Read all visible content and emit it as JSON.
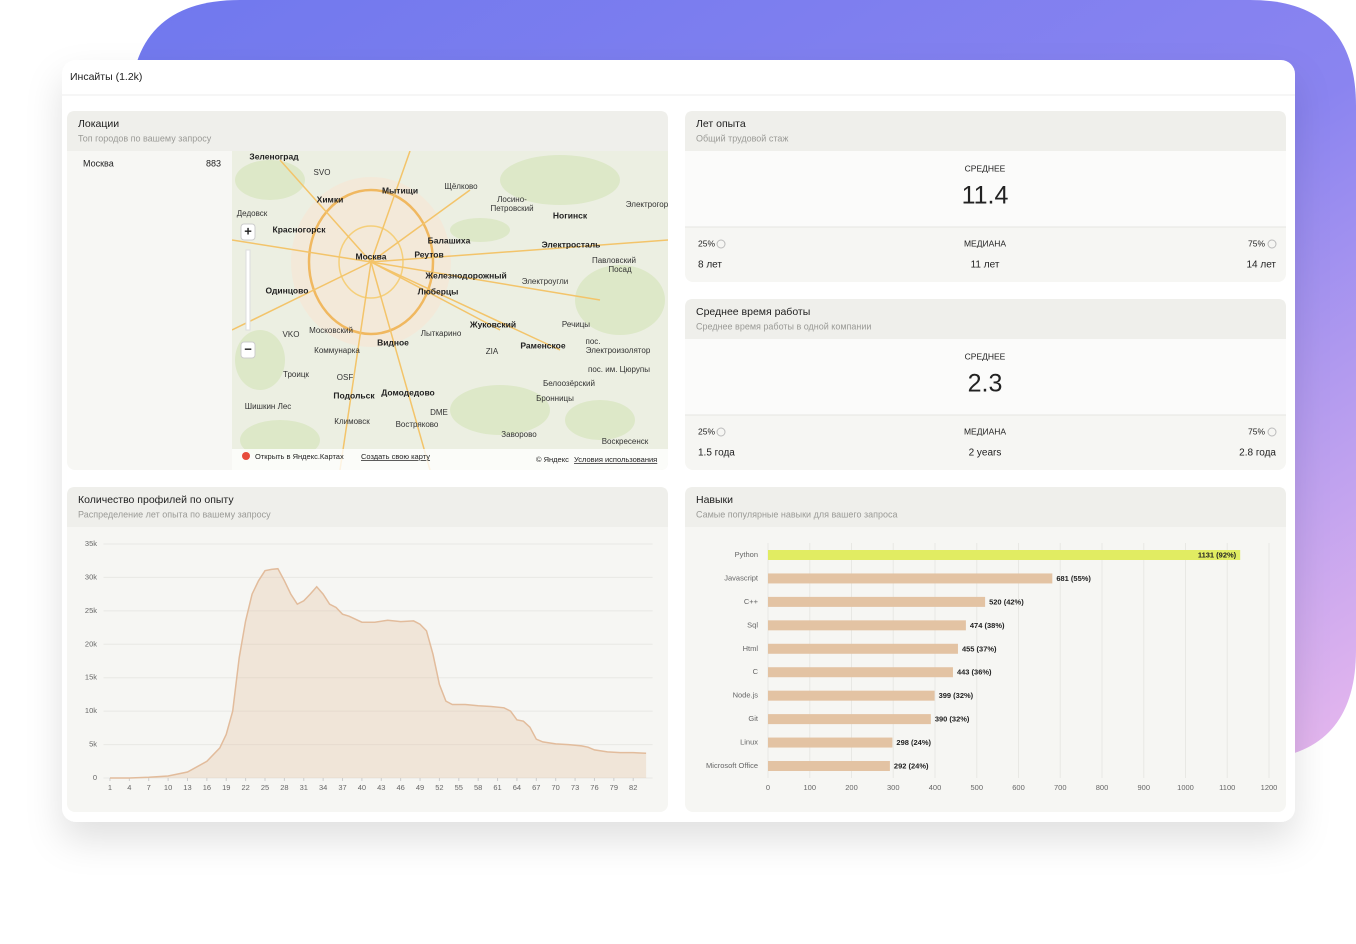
{
  "header": {
    "title": "Инсайты (1.2k)"
  },
  "locations": {
    "title": "Локации",
    "subtitle": "Топ городов по вашему запросу",
    "items": [
      {
        "city": "Москва",
        "count": 883
      }
    ],
    "map": {
      "labels": [
        "Зеленоград",
        "SVO",
        "Мытищи",
        "Щёлково",
        "Химки",
        "Лосино-",
        "Петровский",
        "Электрогор",
        "Дедовск",
        "Ногинск",
        "Красногорск",
        "Балашиха",
        "Электросталь",
        "Москва",
        "Реутов",
        "Павловский",
        "Посад",
        "Железнодорожный",
        "Электроугли",
        "Одинцово",
        "Люберцы",
        "Московский",
        "Жуковский",
        "Речицы",
        "VKO",
        "Лыткарино",
        "Коммунарка",
        "Видное",
        "Раменское",
        "пос.",
        "Электроизолятор",
        "пос. им. Цюрупы",
        "ZIA",
        "OSF",
        "Троицк",
        "Белоозёрский",
        "Подольск",
        "Домодедово",
        "Бронницы",
        "Шишкин Лес",
        "DME",
        "Климовск",
        "Востряково",
        "Заворово",
        "Воскресенск"
      ],
      "open_link": "Открыть в Яндекс.Картах",
      "create_link": "Создать свою карту",
      "copyright": "© Яндекс",
      "terms": "Условия использования"
    }
  },
  "experience": {
    "title": "Лет опыта",
    "subtitle": "Общий трудовой стаж",
    "mean_label": "СРЕДНЕЕ",
    "mean": "11.4",
    "p25_label": "25%",
    "median_label": "МЕДИАНА",
    "p75_label": "75%",
    "p25": "8 лет",
    "median": "11 лет",
    "p75": "14 лет"
  },
  "tenure": {
    "title": "Среднее время работы",
    "subtitle": "Среднее время работы в одной компании",
    "mean_label": "СРЕДНЕЕ",
    "mean": "2.3",
    "p25_label": "25%",
    "median_label": "МЕДИАНА",
    "p75_label": "75%",
    "p25": "1.5 года",
    "median": "2 years",
    "p75": "2.8 года"
  },
  "chart_data": [
    {
      "type": "area",
      "title": "Количество профилей по опыту",
      "subtitle": "Распределение лет опыта по вашему запросу",
      "x": [
        1,
        4,
        7,
        10,
        13,
        16,
        18,
        19,
        20,
        21,
        22,
        23,
        24,
        25,
        26,
        27,
        28,
        29,
        30,
        31,
        32,
        33,
        34,
        35,
        36,
        37,
        38,
        40,
        42,
        44,
        46,
        48,
        49,
        50,
        51,
        52,
        53,
        54,
        56,
        58,
        60,
        62,
        63,
        64,
        65,
        66,
        67,
        68,
        70,
        72,
        74,
        75,
        76,
        78,
        80,
        82,
        84
      ],
      "values": [
        0,
        0,
        100,
        300,
        900,
        2500,
        4500,
        6500,
        10000,
        18000,
        23500,
        27500,
        29500,
        31000,
        31200,
        31300,
        29500,
        27500,
        26000,
        26500,
        27500,
        28600,
        27500,
        26000,
        25500,
        24500,
        24200,
        23300,
        23300,
        23600,
        23400,
        23500,
        23000,
        22000,
        18500,
        14000,
        11500,
        11000,
        11000,
        10800,
        10700,
        10500,
        10000,
        8700,
        8500,
        7600,
        5800,
        5400,
        5100,
        5000,
        4800,
        4600,
        4200,
        3900,
        3800,
        3800,
        3700
      ],
      "color": "#e2bc9c",
      "xlim": [
        0,
        85
      ],
      "xticks": [
        1,
        4,
        7,
        10,
        13,
        16,
        19,
        22,
        25,
        28,
        31,
        34,
        37,
        40,
        43,
        46,
        49,
        52,
        55,
        58,
        61,
        64,
        67,
        70,
        73,
        76,
        79,
        82
      ],
      "ylim": [
        0,
        35000
      ],
      "yticks": [
        0,
        {
          "value": 5000,
          "label": "5k"
        },
        {
          "value": 10000,
          "label": "10k"
        },
        {
          "value": 15000,
          "label": "15k"
        },
        {
          "value": 20000,
          "label": "20k"
        },
        {
          "value": 25000,
          "label": "25k"
        },
        {
          "value": 30000,
          "label": "30k"
        },
        {
          "value": 35000,
          "label": "35k"
        }
      ],
      "grid": true
    },
    {
      "type": "hbar",
      "title": "Навыки",
      "subtitle": "Самые популярные навыки для вашего запроса",
      "categories": [
        "Python",
        "Javascript",
        "C++",
        "Sql",
        "Html",
        "C",
        "Node.js",
        "Git",
        "Linux",
        "Microsoft Office"
      ],
      "values": [
        1131,
        681,
        520,
        474,
        455,
        443,
        399,
        390,
        298,
        292
      ],
      "value_labels": [
        "1131 (92%)",
        "681 (55%)",
        "520 (42%)",
        "474 (38%)",
        "455 (37%)",
        "443 (36%)",
        "399 (32%)",
        "390 (32%)",
        "298 (24%)",
        "292 (24%)"
      ],
      "colors": [
        "#e1ec62",
        "#e3c3a3",
        "#e3c3a3",
        "#e3c3a3",
        "#e3c3a3",
        "#e3c3a3",
        "#e3c3a3",
        "#e3c3a3",
        "#e3c3a3",
        "#e3c3a3"
      ],
      "xlim": [
        0,
        1200
      ],
      "xticks": [
        0,
        100,
        200,
        300,
        400,
        500,
        600,
        700,
        800,
        900,
        1000,
        1100,
        1200
      ],
      "grid": true
    }
  ]
}
